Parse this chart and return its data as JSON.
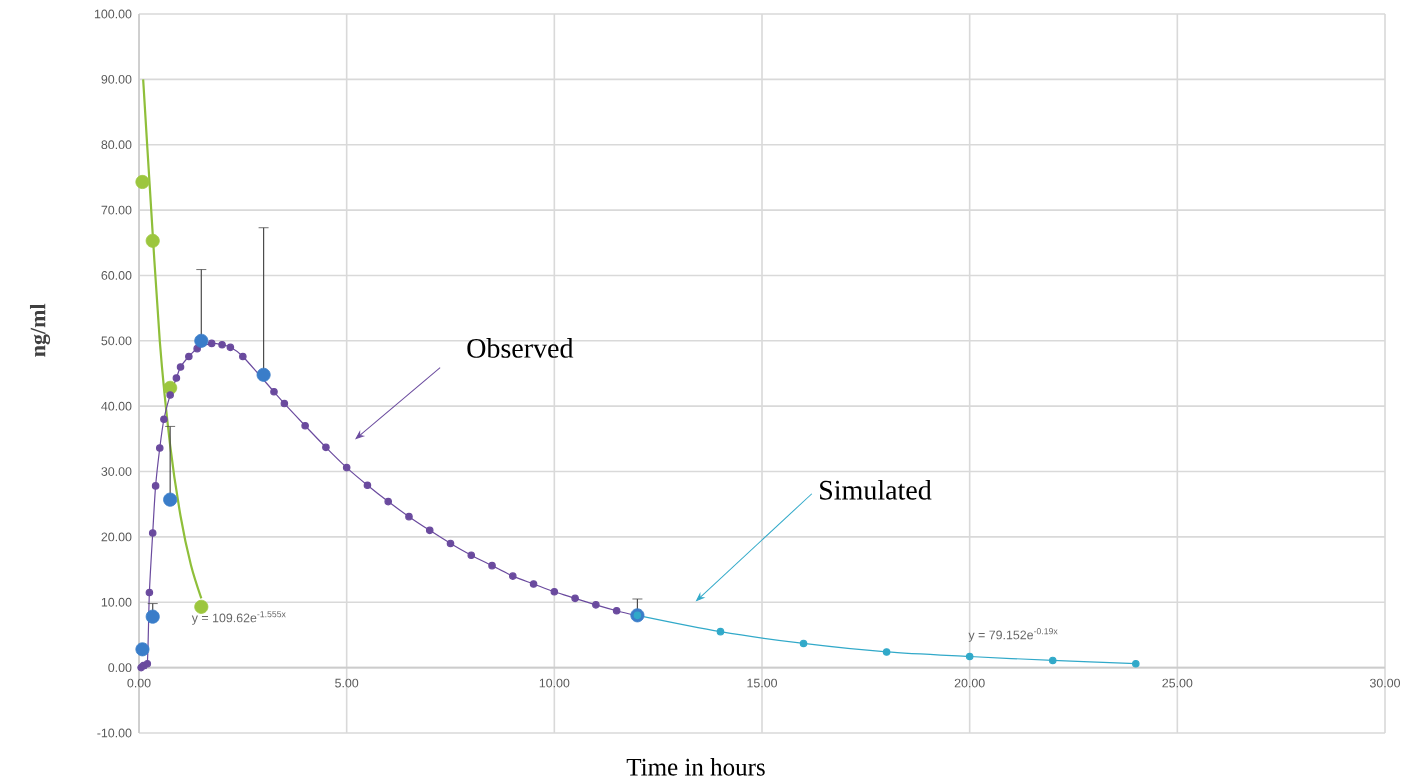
{
  "chart_data": {
    "type": "scatter",
    "xlabel": "Time in hours",
    "ylabel": "ng/ml",
    "xlim": [
      0,
      30
    ],
    "ylim": [
      -10,
      100
    ],
    "xticks": [
      {
        "value": 0,
        "label": "0.00"
      },
      {
        "value": 5,
        "label": "5.00"
      },
      {
        "value": 10,
        "label": "10.00"
      },
      {
        "value": 15,
        "label": "15.00"
      },
      {
        "value": 20,
        "label": "20.00"
      },
      {
        "value": 25,
        "label": "25.00"
      },
      {
        "value": 30,
        "label": "30.00"
      }
    ],
    "yticks": [
      {
        "value": -10,
        "label": "-10.00"
      },
      {
        "value": 0,
        "label": "0.00"
      },
      {
        "value": 10,
        "label": "10.00"
      },
      {
        "value": 20,
        "label": "20.00"
      },
      {
        "value": 30,
        "label": "30.00"
      },
      {
        "value": 40,
        "label": "40.00"
      },
      {
        "value": 50,
        "label": "50.00"
      },
      {
        "value": 60,
        "label": "60.00"
      },
      {
        "value": 70,
        "label": "70.00"
      },
      {
        "value": 80,
        "label": "80.00"
      },
      {
        "value": 90,
        "label": "90.00"
      },
      {
        "value": 100,
        "label": "100.00"
      }
    ],
    "grid": true,
    "series": [
      {
        "type": "line",
        "color": "#8fbf3a",
        "marker": "none",
        "x": [
          0.1,
          0.25,
          0.5,
          0.75,
          1.0,
          1.25,
          1.5
        ],
        "values": [
          90,
          74.5,
          50,
          34,
          23.2,
          15.7,
          10.6
        ]
      },
      {
        "color": "#9cc63e",
        "marker": "circle",
        "x": [
          0.083,
          0.33,
          0.75,
          1.5
        ],
        "values": [
          74.3,
          65.3,
          42.8,
          9.3
        ]
      },
      {
        "type": "line",
        "color": "#6a4a9e",
        "marker": "circle",
        "x": [
          0.05,
          0.1,
          0.2,
          0.25,
          0.33,
          0.4,
          0.5,
          0.6,
          0.75,
          0.9,
          1.0,
          1.2,
          1.4,
          1.75,
          2.0,
          2.2,
          2.5,
          3.25,
          3.5,
          4.0,
          4.5,
          5.0,
          5.5,
          6.0,
          6.5,
          7.0,
          7.5,
          8.0,
          8.5,
          9.0,
          9.5,
          10.0,
          10.5,
          11.0,
          11.5,
          12.0
        ],
        "values": [
          0,
          0.3,
          0.6,
          11.5,
          20.6,
          27.8,
          33.6,
          38,
          41.7,
          44.3,
          46,
          47.6,
          48.8,
          49.6,
          49.4,
          49,
          47.6,
          42.2,
          40.4,
          37,
          33.7,
          30.6,
          27.9,
          25.4,
          23.1,
          21,
          19,
          17.2,
          15.6,
          14,
          12.8,
          11.6,
          10.6,
          9.6,
          8.7,
          7.9
        ]
      },
      {
        "color": "#3a7dc9",
        "marker": "circle",
        "x": [
          0.083,
          0.33,
          0.75,
          1.5,
          3,
          12
        ],
        "values": [
          2.8,
          7.8,
          25.7,
          50,
          44.8,
          8
        ],
        "errors": [
          null,
          [
            7.8,
            9.8
          ],
          [
            25.7,
            36.9
          ],
          [
            50,
            60.9
          ],
          [
            44.8,
            67.3
          ],
          [
            8,
            10.5
          ]
        ]
      },
      {
        "type": "line",
        "color": "#31a9c9",
        "marker": "circle",
        "x": [
          12,
          14,
          16,
          18,
          20,
          22,
          24
        ],
        "values": [
          8,
          5.5,
          3.7,
          2.4,
          1.7,
          1.1,
          0.6
        ]
      }
    ],
    "annotations": [
      "Observed",
      "Simulated",
      "y = 109.62e$^{-1.555x}$",
      "y = 79.152e$^{-0.19x}$"
    ]
  }
}
